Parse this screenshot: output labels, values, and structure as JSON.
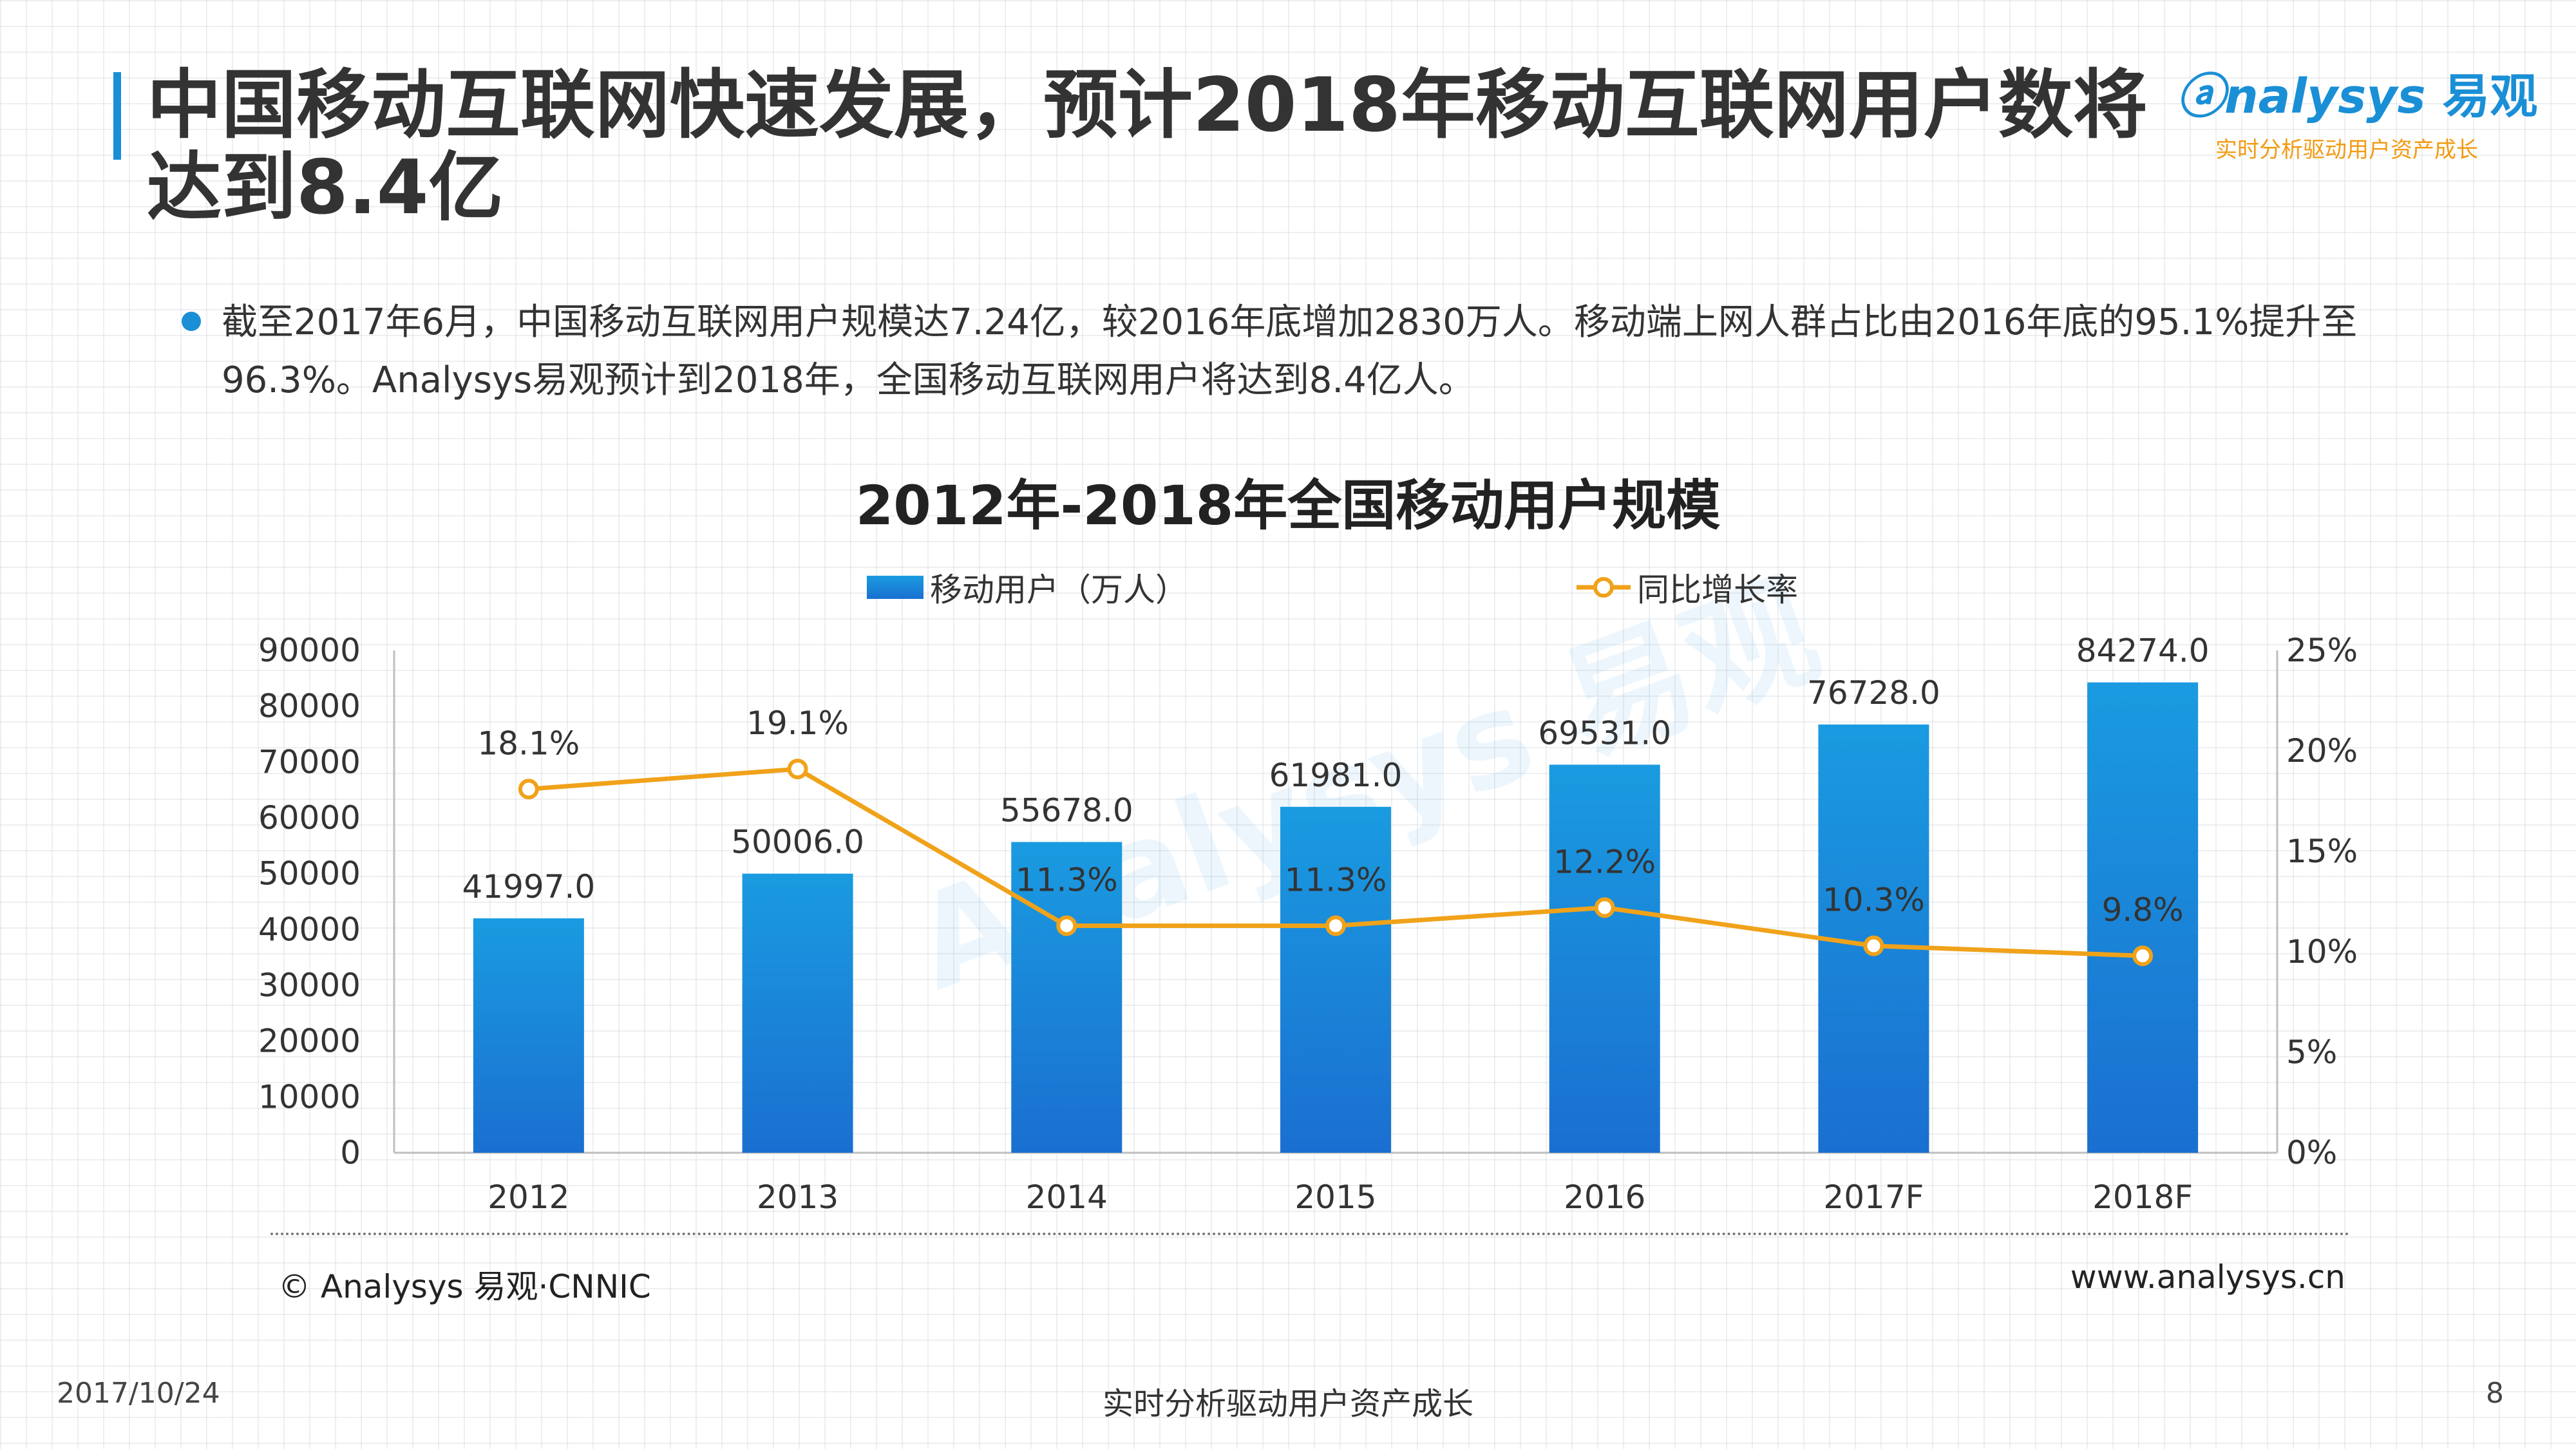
{
  "header": {
    "title": "中国移动互联网快速发展，预计2018年移动互联网用户数将达到8.4亿",
    "logo_name": "nalysys",
    "logo_mark": "易观",
    "logo_tagline": "实时分析驱动用户资产成长"
  },
  "bullet": {
    "text": "截至2017年6月，中国移动互联网用户规模达7.24亿，较2016年底增加2830万人。移动端上网人群占比由2016年底的95.1%提升至96.3%。Analysys易观预计到2018年，全国移动互联网用户将达到8.4亿人。"
  },
  "chart_data": {
    "type": "bar",
    "title": "2012年-2018年全国移动用户规模",
    "categories": [
      "2012",
      "2013",
      "2014",
      "2015",
      "2016",
      "2017F",
      "2018F"
    ],
    "series": [
      {
        "name": "移动用户（万人）",
        "type": "bar",
        "axis": "left",
        "values": [
          41997.0,
          50006.0,
          55678.0,
          61981.0,
          69531.0,
          76728.0,
          84274.0
        ],
        "labels": [
          "41997.0",
          "50006.0",
          "55678.0",
          "61981.0",
          "69531.0",
          "76728.0",
          "84274.0"
        ]
      },
      {
        "name": "同比增长率",
        "type": "line",
        "axis": "right",
        "values": [
          18.1,
          19.1,
          11.3,
          11.3,
          12.2,
          10.3,
          9.8
        ],
        "labels": [
          "18.1%",
          "19.1%",
          "11.3%",
          "11.3%",
          "12.2%",
          "10.3%",
          "9.8%"
        ]
      }
    ],
    "y_left": {
      "min": 0,
      "max": 90000,
      "ticks": [
        "0",
        "10000",
        "20000",
        "30000",
        "40000",
        "50000",
        "60000",
        "70000",
        "80000",
        "90000"
      ]
    },
    "y_right": {
      "min": 0,
      "max": 25,
      "ticks": [
        "0%",
        "5%",
        "10%",
        "15%",
        "20%",
        "25%"
      ]
    },
    "xlabel": "",
    "ylabel": "",
    "grid": false,
    "legend_position": "top",
    "colors": {
      "bar_top": "#1a9be0",
      "bar_bottom": "#1a6fd0",
      "line": "#f0a21a",
      "marker_fill": "#ffffff"
    }
  },
  "footer": {
    "source": "© Analysys 易观·CNNIC",
    "site": "www.analysys.cn",
    "date": "2017/10/24",
    "slogan": "实时分析驱动用户资产成长",
    "page": "8"
  },
  "watermark": {
    "text": "Analysys 易观"
  }
}
